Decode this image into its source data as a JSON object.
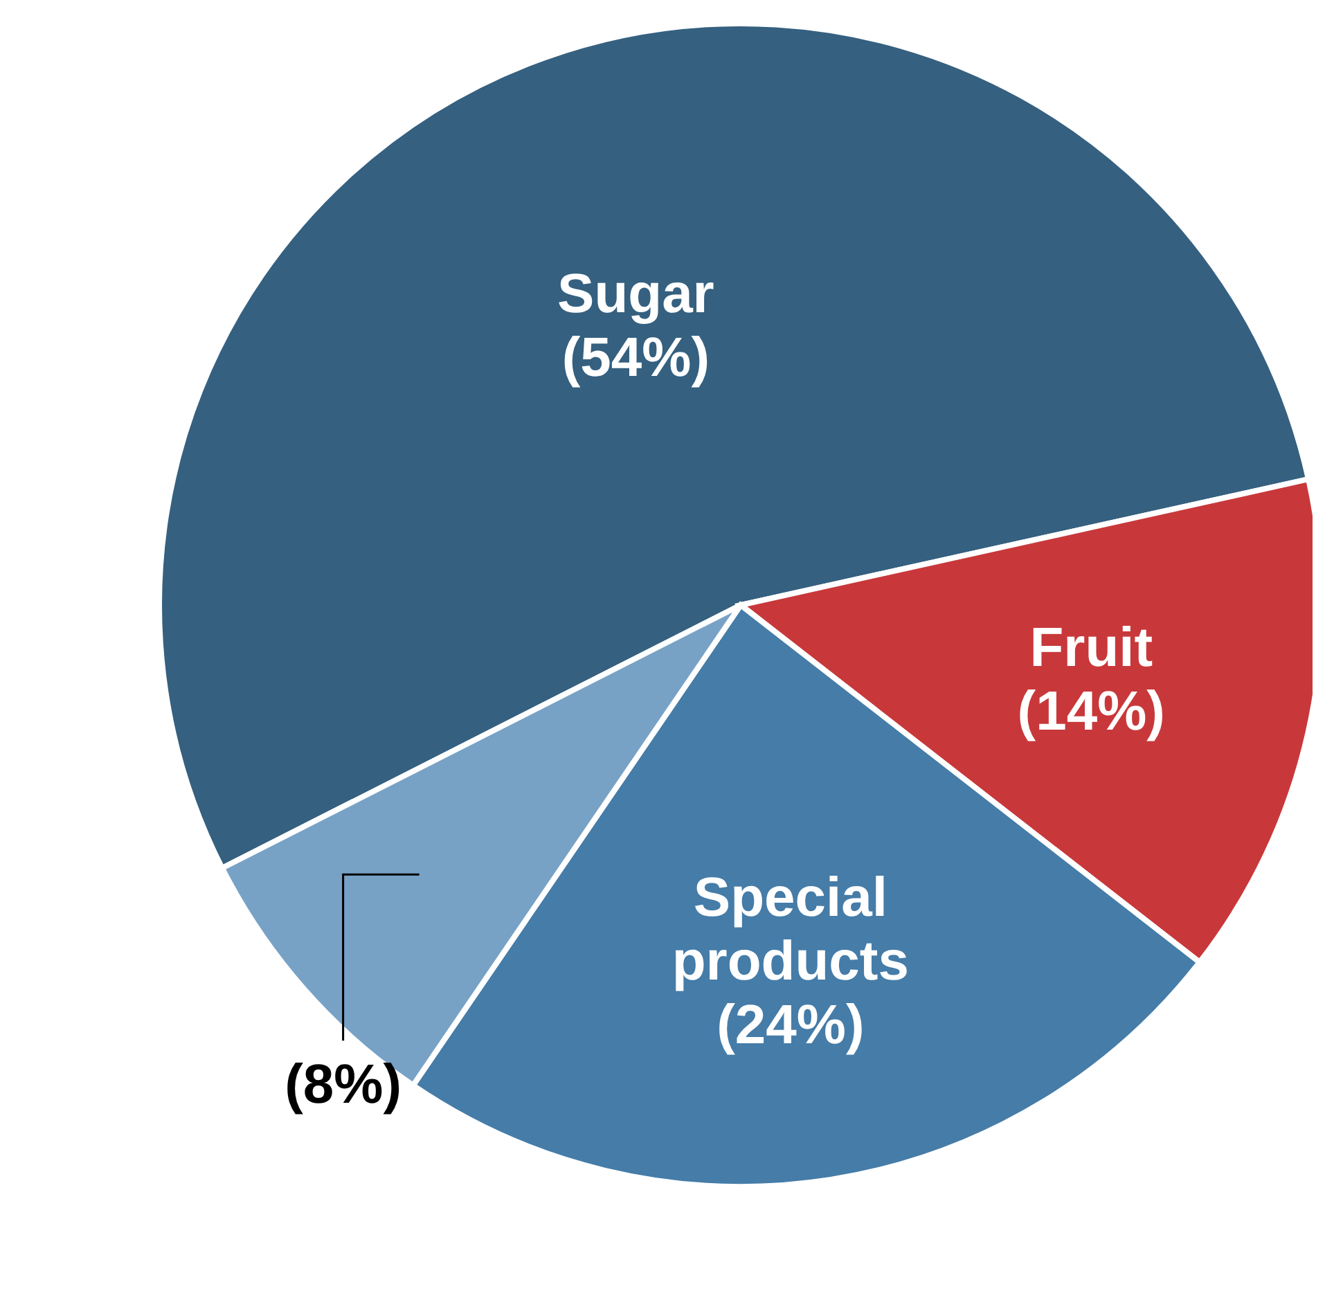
{
  "chart_data": {
    "type": "pie",
    "categories": [
      "Sugar",
      "Fruit",
      "Special products",
      null
    ],
    "values": [
      54,
      14,
      24,
      8
    ],
    "value_labels": [
      "(54%)",
      "(14%)",
      "(24%)",
      "(8%)"
    ],
    "colors": [
      "#356080",
      "#c8383a",
      "#457ca8",
      "#77a2c6"
    ]
  }
}
